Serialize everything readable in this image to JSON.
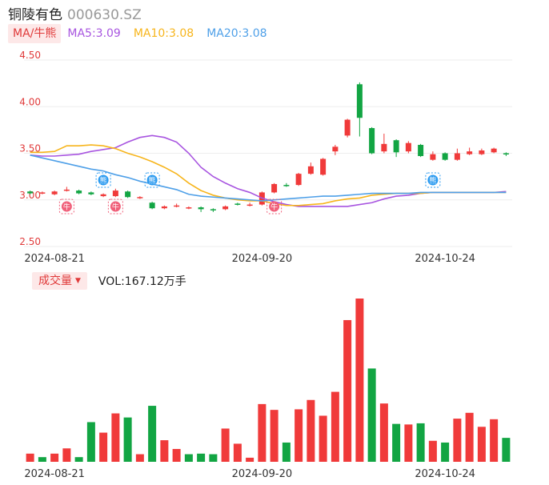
{
  "header": {
    "name": "铜陵有色",
    "code": "000630.SZ"
  },
  "legend": {
    "ma_type": "MA/牛熊",
    "ma5": "MA5:3.09",
    "ma10": "MA10:3.08",
    "ma20": "MA20:3.08"
  },
  "volume_bar": {
    "toggle_label": "成交量",
    "vol_text": "VOL:167.12万手"
  },
  "colors": {
    "up": "#f03a3a",
    "down": "#12a543",
    "ma5": "#a855e0",
    "ma10": "#f7b51c",
    "ma20": "#4fa0e8",
    "axis_text": "#e03a3a",
    "grid": "#eeeeee"
  },
  "chart_data": [
    {
      "type": "candlestick",
      "ylim": [
        2.5,
        4.5
      ],
      "y_ticks": [
        "4.50",
        "4.00",
        "3.50",
        "3.00",
        "2.50"
      ],
      "x_tick_labels": [
        {
          "label": "2024-08-21",
          "index": 2
        },
        {
          "label": "2024-09-20",
          "index": 19
        },
        {
          "label": "2024-10-24",
          "index": 34
        }
      ],
      "candles": [
        {
          "o": 3.09,
          "c": 3.07,
          "h": 3.1,
          "l": 3.06
        },
        {
          "o": 3.07,
          "c": 3.08,
          "h": 3.09,
          "l": 3.06
        },
        {
          "o": 3.06,
          "c": 3.09,
          "h": 3.1,
          "l": 3.05
        },
        {
          "o": 3.1,
          "c": 3.11,
          "h": 3.14,
          "l": 3.09
        },
        {
          "o": 3.1,
          "c": 3.07,
          "h": 3.11,
          "l": 3.06
        },
        {
          "o": 3.08,
          "c": 3.06,
          "h": 3.09,
          "l": 3.05
        },
        {
          "o": 3.04,
          "c": 3.06,
          "h": 3.07,
          "l": 3.03
        },
        {
          "o": 3.04,
          "c": 3.1,
          "h": 3.12,
          "l": 3.03
        },
        {
          "o": 3.09,
          "c": 3.03,
          "h": 3.1,
          "l": 3.02
        },
        {
          "o": 3.02,
          "c": 3.03,
          "h": 3.04,
          "l": 3.01
        },
        {
          "o": 2.97,
          "c": 2.91,
          "h": 2.98,
          "l": 2.9
        },
        {
          "o": 2.91,
          "c": 2.93,
          "h": 2.94,
          "l": 2.9
        },
        {
          "o": 2.94,
          "c": 2.94,
          "h": 2.96,
          "l": 2.92
        },
        {
          "o": 2.91,
          "c": 2.92,
          "h": 2.93,
          "l": 2.9
        },
        {
          "o": 2.92,
          "c": 2.9,
          "h": 2.93,
          "l": 2.87
        },
        {
          "o": 2.9,
          "c": 2.89,
          "h": 2.91,
          "l": 2.87
        },
        {
          "o": 2.9,
          "c": 2.93,
          "h": 2.94,
          "l": 2.89
        },
        {
          "o": 2.96,
          "c": 2.95,
          "h": 2.97,
          "l": 2.94
        },
        {
          "o": 2.94,
          "c": 2.95,
          "h": 2.97,
          "l": 2.93
        },
        {
          "o": 2.95,
          "c": 3.08,
          "h": 3.09,
          "l": 2.94
        },
        {
          "o": 3.08,
          "c": 3.17,
          "h": 3.18,
          "l": 3.07
        },
        {
          "o": 3.16,
          "c": 3.15,
          "h": 3.18,
          "l": 3.14
        },
        {
          "o": 3.16,
          "c": 3.28,
          "h": 3.29,
          "l": 3.15
        },
        {
          "o": 3.28,
          "c": 3.36,
          "h": 3.4,
          "l": 3.27
        },
        {
          "o": 3.27,
          "c": 3.44,
          "h": 3.45,
          "l": 3.26
        },
        {
          "o": 3.52,
          "c": 3.57,
          "h": 3.59,
          "l": 3.48
        },
        {
          "o": 3.69,
          "c": 3.86,
          "h": 3.87,
          "l": 3.67
        },
        {
          "o": 4.24,
          "c": 3.88,
          "h": 4.26,
          "l": 3.68
        },
        {
          "o": 3.77,
          "c": 3.5,
          "h": 3.78,
          "l": 3.49
        },
        {
          "o": 3.52,
          "c": 3.6,
          "h": 3.71,
          "l": 3.5
        },
        {
          "o": 3.64,
          "c": 3.51,
          "h": 3.65,
          "l": 3.46
        },
        {
          "o": 3.52,
          "c": 3.61,
          "h": 3.63,
          "l": 3.5
        },
        {
          "o": 3.59,
          "c": 3.47,
          "h": 3.6,
          "l": 3.46
        },
        {
          "o": 3.43,
          "c": 3.49,
          "h": 3.52,
          "l": 3.42
        },
        {
          "o": 3.5,
          "c": 3.43,
          "h": 3.51,
          "l": 3.42
        },
        {
          "o": 3.43,
          "c": 3.5,
          "h": 3.55,
          "l": 3.42
        },
        {
          "o": 3.49,
          "c": 3.52,
          "h": 3.56,
          "l": 3.48
        },
        {
          "o": 3.49,
          "c": 3.53,
          "h": 3.55,
          "l": 3.48
        },
        {
          "o": 3.51,
          "c": 3.55,
          "h": 3.56,
          "l": 3.5
        },
        {
          "o": 3.5,
          "c": 3.49,
          "h": 3.51,
          "l": 3.47
        }
      ],
      "series": [
        {
          "name": "MA5",
          "values": [
            3.48,
            3.47,
            3.47,
            3.48,
            3.49,
            3.52,
            3.54,
            3.56,
            3.62,
            3.67,
            3.69,
            3.67,
            3.62,
            3.5,
            3.35,
            3.25,
            3.18,
            3.12,
            3.08,
            3.02,
            2.98,
            2.95,
            2.93,
            2.93,
            2.93,
            2.93,
            2.93,
            2.95,
            2.97,
            3.01,
            3.04,
            3.05,
            3.07,
            3.08,
            3.08,
            3.08,
            3.08,
            3.08,
            3.08,
            3.09
          ]
        },
        {
          "name": "MA10",
          "values": [
            3.51,
            3.51,
            3.52,
            3.58,
            3.58,
            3.59,
            3.58,
            3.55,
            3.5,
            3.46,
            3.41,
            3.35,
            3.28,
            3.18,
            3.1,
            3.05,
            3.02,
            3.0,
            2.99,
            2.99,
            2.96,
            2.94,
            2.94,
            2.95,
            2.96,
            2.99,
            3.01,
            3.02,
            3.05,
            3.06,
            3.07,
            3.07,
            3.07,
            3.08,
            3.08,
            3.08,
            3.08,
            3.08,
            3.08,
            3.08
          ]
        },
        {
          "name": "MA20",
          "values": [
            3.48,
            3.45,
            3.42,
            3.39,
            3.36,
            3.33,
            3.31,
            3.27,
            3.24,
            3.2,
            3.17,
            3.14,
            3.11,
            3.06,
            3.04,
            3.03,
            3.02,
            3.01,
            3.0,
            2.99,
            3.0,
            3.01,
            3.02,
            3.03,
            3.04,
            3.04,
            3.05,
            3.06,
            3.07,
            3.07,
            3.07,
            3.07,
            3.08,
            3.08,
            3.08,
            3.08,
            3.08,
            3.08,
            3.08,
            3.08
          ]
        }
      ],
      "signals": [
        {
          "index": 3,
          "kind": "bull",
          "label": "牛"
        },
        {
          "index": 6,
          "kind": "bear",
          "label": "熊"
        },
        {
          "index": 7,
          "kind": "bull",
          "label": "牛"
        },
        {
          "index": 10,
          "kind": "bear",
          "label": "熊"
        },
        {
          "index": 20,
          "kind": "bull",
          "label": "牛"
        },
        {
          "index": 33,
          "kind": "bear",
          "label": "熊"
        }
      ]
    },
    {
      "type": "bar",
      "name": "成交量",
      "x_tick_labels": [
        {
          "label": "2024-08-21",
          "index": 2
        },
        {
          "label": "2024-09-20",
          "index": 19
        },
        {
          "label": "2024-10-24",
          "index": 34
        }
      ],
      "values": [
        14,
        8,
        14,
        23,
        8,
        68,
        50,
        83,
        76,
        13,
        96,
        37,
        22,
        13,
        14,
        13,
        57,
        31,
        7,
        99,
        89,
        33,
        90,
        106,
        79,
        120,
        243,
        280,
        160,
        100,
        65,
        64,
        66,
        36,
        33,
        74,
        84,
        60,
        73,
        41
      ],
      "directions": [
        "up",
        "down",
        "up",
        "up",
        "down",
        "down",
        "up",
        "up",
        "down",
        "up",
        "down",
        "up",
        "up",
        "down",
        "down",
        "down",
        "up",
        "up",
        "up",
        "up",
        "up",
        "down",
        "up",
        "up",
        "up",
        "up",
        "up",
        "up",
        "down",
        "up",
        "down",
        "up",
        "down",
        "up",
        "down",
        "up",
        "up",
        "up",
        "up",
        "down"
      ]
    }
  ]
}
